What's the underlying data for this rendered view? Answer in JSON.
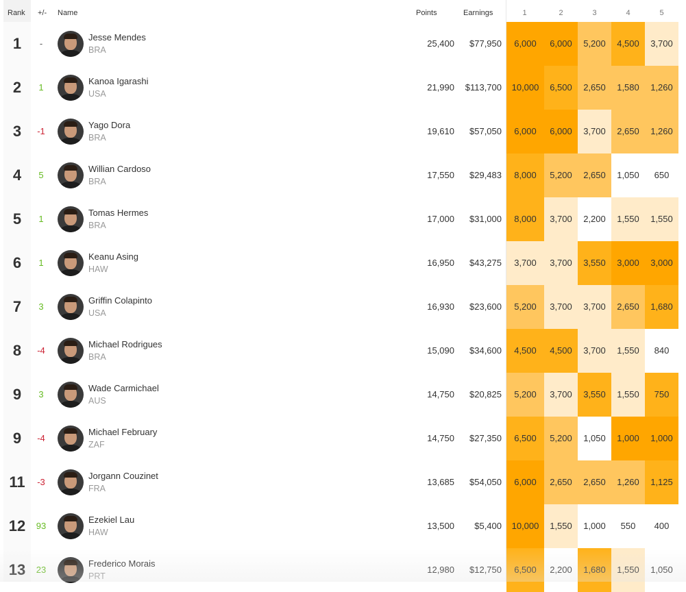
{
  "header": {
    "rank": "Rank",
    "change": "+/-",
    "name": "Name",
    "points": "Points",
    "earnings": "Earnings",
    "events": [
      "1",
      "2",
      "3",
      "4",
      "5"
    ]
  },
  "heat_colors": {
    "0": "#ffffff",
    "1": "#ffebc9",
    "2": "#ffc65e",
    "3": "#ffb21a",
    "4": "#ffa600"
  },
  "rows": [
    {
      "rank": "1",
      "change": "-",
      "trend": "flat",
      "name": "Jesse Mendes",
      "country": "BRA",
      "points": "25,400",
      "earnings": "$77,950",
      "events": [
        "6,000",
        "6,000",
        "5,200",
        "4,500",
        "3,700"
      ],
      "heat": [
        4,
        4,
        2,
        3,
        1
      ]
    },
    {
      "rank": "2",
      "change": "1",
      "trend": "up",
      "name": "Kanoa Igarashi",
      "country": "USA",
      "points": "21,990",
      "earnings": "$113,700",
      "events": [
        "10,000",
        "6,500",
        "2,650",
        "1,580",
        "1,260"
      ],
      "heat": [
        4,
        3,
        2,
        2,
        2
      ]
    },
    {
      "rank": "3",
      "change": "-1",
      "trend": "down",
      "name": "Yago Dora",
      "country": "BRA",
      "points": "19,610",
      "earnings": "$57,050",
      "events": [
        "6,000",
        "6,000",
        "3,700",
        "2,650",
        "1,260"
      ],
      "heat": [
        4,
        4,
        1,
        2,
        2
      ]
    },
    {
      "rank": "4",
      "change": "5",
      "trend": "up",
      "name": "Willian Cardoso",
      "country": "BRA",
      "points": "17,550",
      "earnings": "$29,483",
      "events": [
        "8,000",
        "5,200",
        "2,650",
        "1,050",
        "650"
      ],
      "heat": [
        3,
        2,
        2,
        0,
        0
      ]
    },
    {
      "rank": "5",
      "change": "1",
      "trend": "up",
      "name": "Tomas Hermes",
      "country": "BRA",
      "points": "17,000",
      "earnings": "$31,000",
      "events": [
        "8,000",
        "3,700",
        "2,200",
        "1,550",
        "1,550"
      ],
      "heat": [
        3,
        1,
        0,
        1,
        1
      ]
    },
    {
      "rank": "6",
      "change": "1",
      "trend": "up",
      "name": "Keanu Asing",
      "country": "HAW",
      "points": "16,950",
      "earnings": "$43,275",
      "events": [
        "3,700",
        "3,700",
        "3,550",
        "3,000",
        "3,000"
      ],
      "heat": [
        1,
        1,
        3,
        4,
        4
      ]
    },
    {
      "rank": "7",
      "change": "3",
      "trend": "up",
      "name": "Griffin Colapinto",
      "country": "USA",
      "points": "16,930",
      "earnings": "$23,600",
      "events": [
        "5,200",
        "3,700",
        "3,700",
        "2,650",
        "1,680"
      ],
      "heat": [
        2,
        1,
        1,
        2,
        3
      ]
    },
    {
      "rank": "8",
      "change": "-4",
      "trend": "down",
      "name": "Michael Rodrigues",
      "country": "BRA",
      "points": "15,090",
      "earnings": "$34,600",
      "events": [
        "4,500",
        "4,500",
        "3,700",
        "1,550",
        "840"
      ],
      "heat": [
        3,
        3,
        1,
        1,
        0
      ]
    },
    {
      "rank": "9",
      "change": "3",
      "trend": "up",
      "name": "Wade Carmichael",
      "country": "AUS",
      "points": "14,750",
      "earnings": "$20,825",
      "events": [
        "5,200",
        "3,700",
        "3,550",
        "1,550",
        "750"
      ],
      "heat": [
        2,
        1,
        3,
        1,
        3
      ]
    },
    {
      "rank": "9",
      "change": "-4",
      "trend": "down",
      "name": "Michael February",
      "country": "ZAF",
      "points": "14,750",
      "earnings": "$27,350",
      "events": [
        "6,500",
        "5,200",
        "1,050",
        "1,000",
        "1,000"
      ],
      "heat": [
        3,
        2,
        0,
        4,
        4
      ]
    },
    {
      "rank": "11",
      "change": "-3",
      "trend": "down",
      "name": "Jorgann Couzinet",
      "country": "FRA",
      "points": "13,685",
      "earnings": "$54,050",
      "events": [
        "6,000",
        "2,650",
        "2,650",
        "1,260",
        "1,125"
      ],
      "heat": [
        4,
        2,
        2,
        2,
        3
      ]
    },
    {
      "rank": "12",
      "change": "93",
      "trend": "up",
      "name": "Ezekiel Lau",
      "country": "HAW",
      "points": "13,500",
      "earnings": "$5,400",
      "events": [
        "10,000",
        "1,550",
        "1,000",
        "550",
        "400"
      ],
      "heat": [
        4,
        1,
        0,
        0,
        0
      ]
    },
    {
      "rank": "13",
      "change": "23",
      "trend": "up",
      "name": "Frederico Morais",
      "country": "PRT",
      "points": "12,980",
      "earnings": "$12,750",
      "events": [
        "6,500",
        "2,200",
        "1,680",
        "1,550",
        "1,050"
      ],
      "heat": [
        3,
        0,
        3,
        1,
        0
      ]
    }
  ]
}
